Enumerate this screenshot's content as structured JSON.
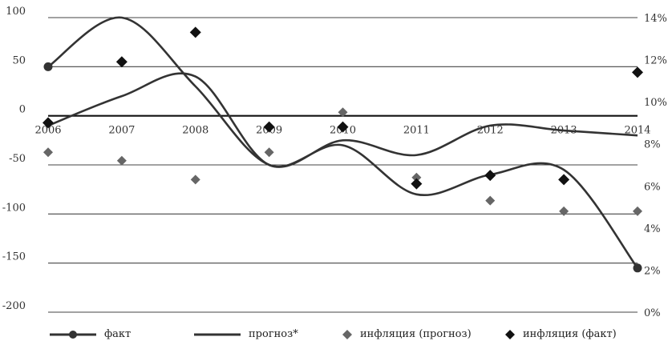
{
  "chart_data": {
    "type": "line",
    "x": [
      "2006",
      "2007",
      "2008",
      "2009",
      "2010",
      "2011",
      "2012",
      "2013",
      "2014"
    ],
    "y_left": {
      "ylim": [
        -200,
        100
      ],
      "ticks": [
        100,
        50,
        0,
        -50,
        -100,
        -150,
        -200
      ]
    },
    "y_right": {
      "ylim": [
        0,
        14
      ],
      "ticks": [
        "14%",
        "12%",
        "10%",
        "8%",
        "6%",
        "4%",
        "2%",
        "0%"
      ]
    },
    "series": [
      {
        "name": "факт",
        "kind": "line-marker",
        "axis": "left",
        "values": [
          50,
          100,
          30,
          -50,
          -30,
          -80,
          -60,
          -55,
          -155
        ],
        "markers": [
          0,
          8
        ]
      },
      {
        "name": "прогноз*",
        "kind": "line",
        "axis": "left",
        "values": [
          -10,
          20,
          40,
          -50,
          -25,
          -40,
          -10,
          -15,
          -20
        ]
      },
      {
        "name": "инфляция (прогноз)",
        "kind": "marker",
        "axis": "right",
        "values": [
          7.6,
          7.2,
          6.3,
          7.6,
          9.5,
          6.4,
          5.3,
          4.8,
          4.8
        ],
        "color": "#666666"
      },
      {
        "name": "инфляция (факт)",
        "kind": "marker",
        "axis": "right",
        "values": [
          9.0,
          11.9,
          13.3,
          8.8,
          8.8,
          6.1,
          6.5,
          6.3,
          11.4
        ],
        "color": "#111111"
      }
    ]
  }
}
